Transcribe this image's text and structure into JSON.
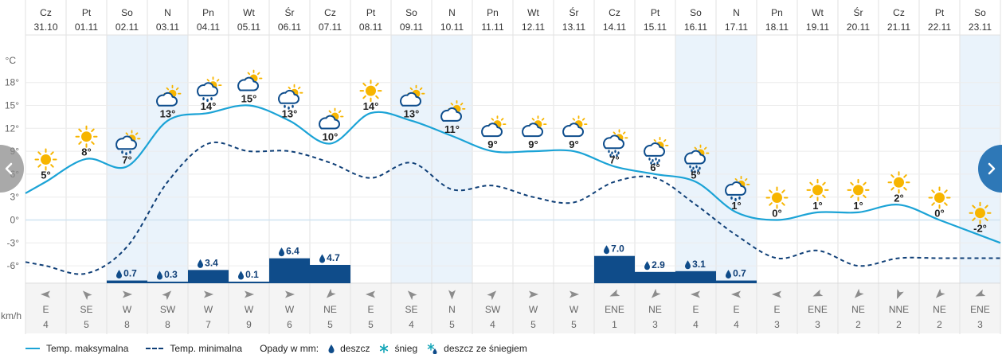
{
  "days": [
    {
      "dow": "Cz",
      "date": "31.10",
      "max": 5,
      "min": -6,
      "icon": "sun-icon",
      "precip": null,
      "wind_dir": "E",
      "wind_speed": 4,
      "weekend": false
    },
    {
      "dow": "Pt",
      "date": "01.11",
      "max": 8,
      "min": -7,
      "icon": "sun-icon",
      "precip": null,
      "wind_dir": "SE",
      "wind_speed": 5,
      "weekend": false
    },
    {
      "dow": "So",
      "date": "02.11",
      "max": 7,
      "min": -3.5,
      "icon": "cloud-rain-sun-icon",
      "precip": "0.7",
      "wind_dir": "W",
      "wind_speed": 8,
      "weekend": true
    },
    {
      "dow": "N",
      "date": "03.11",
      "max": 13,
      "min": 5,
      "icon": "cloud-sun-icon",
      "precip": "0.3",
      "wind_dir": "SW",
      "wind_speed": 8,
      "weekend": true
    },
    {
      "dow": "Pn",
      "date": "04.11",
      "max": 14,
      "min": 10,
      "icon": "cloud-rain-sun-icon",
      "precip": "3.4",
      "wind_dir": "W",
      "wind_speed": 7,
      "weekend": false
    },
    {
      "dow": "Wt",
      "date": "05.11",
      "max": 15,
      "min": 9,
      "icon": "cloud-sun-icon",
      "precip": "0.1",
      "wind_dir": "W",
      "wind_speed": 9,
      "weekend": false
    },
    {
      "dow": "Śr",
      "date": "06.11",
      "max": 13,
      "min": 9,
      "icon": "cloud-rain-sun-icon",
      "precip": "6.4",
      "wind_dir": "W",
      "wind_speed": 6,
      "weekend": false
    },
    {
      "dow": "Cz",
      "date": "07.11",
      "max": 10,
      "min": 7.5,
      "icon": "cloud-sun-icon",
      "precip": "4.7",
      "wind_dir": "NE",
      "wind_speed": 5,
      "weekend": false
    },
    {
      "dow": "Pt",
      "date": "08.11",
      "max": 14,
      "min": 5.5,
      "icon": "sun-icon",
      "precip": null,
      "wind_dir": "E",
      "wind_speed": 5,
      "weekend": false
    },
    {
      "dow": "So",
      "date": "09.11",
      "max": 13,
      "min": 7.5,
      "icon": "cloud-sun-icon",
      "precip": null,
      "wind_dir": "SE",
      "wind_speed": 4,
      "weekend": true
    },
    {
      "dow": "N",
      "date": "10.11",
      "max": 11,
      "min": 4,
      "icon": "cloud-sun-icon",
      "precip": null,
      "wind_dir": "N",
      "wind_speed": 5,
      "weekend": true
    },
    {
      "dow": "Pn",
      "date": "11.11",
      "max": 9,
      "min": 4.5,
      "icon": "cloud-sun-icon",
      "precip": null,
      "wind_dir": "SW",
      "wind_speed": 4,
      "weekend": false
    },
    {
      "dow": "Wt",
      "date": "12.11",
      "max": 9,
      "min": 3,
      "icon": "cloud-sun-icon",
      "precip": null,
      "wind_dir": "W",
      "wind_speed": 5,
      "weekend": false
    },
    {
      "dow": "Śr",
      "date": "13.11",
      "max": 9,
      "min": 2.3,
      "icon": "cloud-sun-icon",
      "precip": null,
      "wind_dir": "W",
      "wind_speed": 5,
      "weekend": false
    },
    {
      "dow": "Cz",
      "date": "14.11",
      "max": 7,
      "min": 5,
      "icon": "cloud-heavy-rain-sun-icon",
      "precip": "7.0",
      "wind_dir": "ENE",
      "wind_speed": 1,
      "weekend": false
    },
    {
      "dow": "Pt",
      "date": "15.11",
      "max": 6,
      "min": 5.5,
      "icon": "cloud-heavy-rain-sun-icon",
      "precip": "2.9",
      "wind_dir": "NE",
      "wind_speed": 3,
      "weekend": false
    },
    {
      "dow": "So",
      "date": "16.11",
      "max": 5,
      "min": 2,
      "icon": "cloud-heavy-rain-sun-icon",
      "precip": "3.1",
      "wind_dir": "E",
      "wind_speed": 4,
      "weekend": true
    },
    {
      "dow": "N",
      "date": "17.11",
      "max": 1,
      "min": -2,
      "icon": "cloud-rain-sun-icon",
      "precip": "0.7",
      "wind_dir": "E",
      "wind_speed": 4,
      "weekend": true
    },
    {
      "dow": "Pn",
      "date": "18.11",
      "max": 0,
      "min": -5,
      "icon": "sun-icon",
      "precip": null,
      "wind_dir": "E",
      "wind_speed": 3,
      "weekend": false
    },
    {
      "dow": "Wt",
      "date": "19.11",
      "max": 1,
      "min": -4,
      "icon": "sun-icon",
      "precip": null,
      "wind_dir": "ENE",
      "wind_speed": 3,
      "weekend": false
    },
    {
      "dow": "Śr",
      "date": "20.11",
      "max": 1,
      "min": -6,
      "icon": "sun-icon",
      "precip": null,
      "wind_dir": "NE",
      "wind_speed": 2,
      "weekend": false
    },
    {
      "dow": "Cz",
      "date": "21.11",
      "max": 2,
      "min": -5,
      "icon": "sun-icon",
      "precip": null,
      "wind_dir": "NNE",
      "wind_speed": 2,
      "weekend": false
    },
    {
      "dow": "Pt",
      "date": "22.11",
      "max": 0,
      "min": -5,
      "icon": "sun-icon",
      "precip": null,
      "wind_dir": "NE",
      "wind_speed": 2,
      "weekend": false
    },
    {
      "dow": "So",
      "date": "23.11",
      "max": -2,
      "min": -5,
      "icon": "sun-icon",
      "precip": null,
      "wind_dir": "ENE",
      "wind_speed": 3,
      "weekend": true
    }
  ],
  "chart_data": {
    "type": "line",
    "categories": [
      "31.10",
      "01.11",
      "02.11",
      "03.11",
      "04.11",
      "05.11",
      "06.11",
      "07.11",
      "08.11",
      "09.11",
      "10.11",
      "11.11",
      "12.11",
      "13.11",
      "14.11",
      "15.11",
      "16.11",
      "17.11",
      "18.11",
      "19.11",
      "20.11",
      "21.11",
      "22.11",
      "23.11"
    ],
    "series": [
      {
        "name": "Temp. maksymalna",
        "values": [
          5,
          8,
          7,
          13,
          14,
          15,
          13,
          10,
          14,
          13,
          11,
          9,
          9,
          9,
          7,
          6,
          5,
          1,
          0,
          1,
          1,
          2,
          0,
          -2
        ]
      },
      {
        "name": "Temp. minimalna",
        "values": [
          -6,
          -7,
          -3.5,
          5,
          10,
          9,
          9,
          7.5,
          5.5,
          7.5,
          4,
          4.5,
          3,
          2.3,
          5,
          5.5,
          2,
          -2,
          -5,
          -4,
          -6,
          -5,
          -5,
          -5
        ]
      }
    ],
    "bars": {
      "name": "Opady w mm",
      "values": [
        0,
        0,
        0.7,
        0.3,
        3.4,
        0.1,
        6.4,
        4.7,
        0,
        0,
        0,
        0,
        0,
        0,
        7.0,
        2.9,
        3.1,
        0.7,
        0,
        0,
        0,
        0,
        0,
        0
      ]
    },
    "ylabel": "°C",
    "yticks": [
      18,
      15,
      12,
      9,
      6,
      3,
      0,
      -3,
      -6
    ],
    "ylim": [
      -7.5,
      21
    ],
    "wind_unit": "km/h",
    "grid": true
  },
  "axis": {
    "unit_label": "°C",
    "wind_unit": "km/h"
  },
  "legend": {
    "max_label": "Temp. maksymalna",
    "min_label": "Temp. minimalna",
    "precip_label": "Opady w mm:",
    "rain_label": "deszcz",
    "snow_label": "śnieg",
    "rainsnow_label": "deszcz ze śniegiem"
  },
  "colors": {
    "max_line": "#1ba3d6",
    "min_line": "#0f3f77",
    "precip_bar": "#0f4c8a",
    "weekend_bg": "#eaf3fb",
    "sun": "#f7b500",
    "cloud": "#0e4d8c",
    "nav_right": "#2e78b7",
    "snow": "#14a6b8"
  },
  "nav": {
    "prev_icon": "chevron-left-icon",
    "next_icon": "chevron-right-icon"
  }
}
